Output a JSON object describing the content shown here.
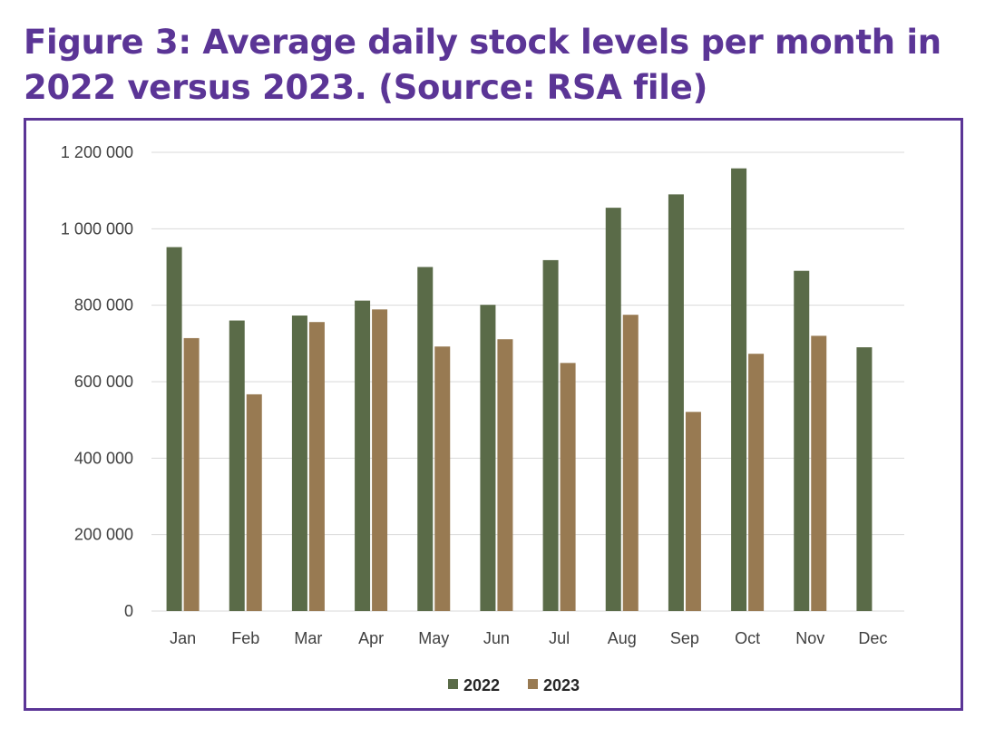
{
  "figure": {
    "title": "Figure 3: Average daily stock levels per month in 2022 versus 2023. (Source: RSA file)"
  },
  "chart_data": {
    "type": "bar",
    "title": "",
    "xlabel": "",
    "ylabel": "",
    "categories": [
      "Jan",
      "Feb",
      "Mar",
      "Apr",
      "May",
      "Jun",
      "Jul",
      "Aug",
      "Sep",
      "Oct",
      "Nov",
      "Dec"
    ],
    "series": [
      {
        "name": "2022",
        "color": "#5a6b48",
        "values": [
          952000,
          760000,
          773000,
          812000,
          900000,
          801000,
          918000,
          1055000,
          1090000,
          1158000,
          890000,
          690000
        ]
      },
      {
        "name": "2023",
        "color": "#987a52",
        "values": [
          714000,
          567000,
          756000,
          789000,
          692000,
          711000,
          649000,
          775000,
          521000,
          673000,
          720000,
          null
        ]
      }
    ],
    "ylim": [
      0,
      1200000
    ],
    "yticks": [
      0,
      200000,
      400000,
      600000,
      800000,
      1000000,
      1200000
    ],
    "ytick_labels": [
      "0",
      "200 000",
      "400 000",
      "600 000",
      "800 000",
      "1 000 000",
      "1 200 000"
    ],
    "grid": true,
    "gridline_color": "#d9d9d9",
    "legend_position": "bottom"
  }
}
